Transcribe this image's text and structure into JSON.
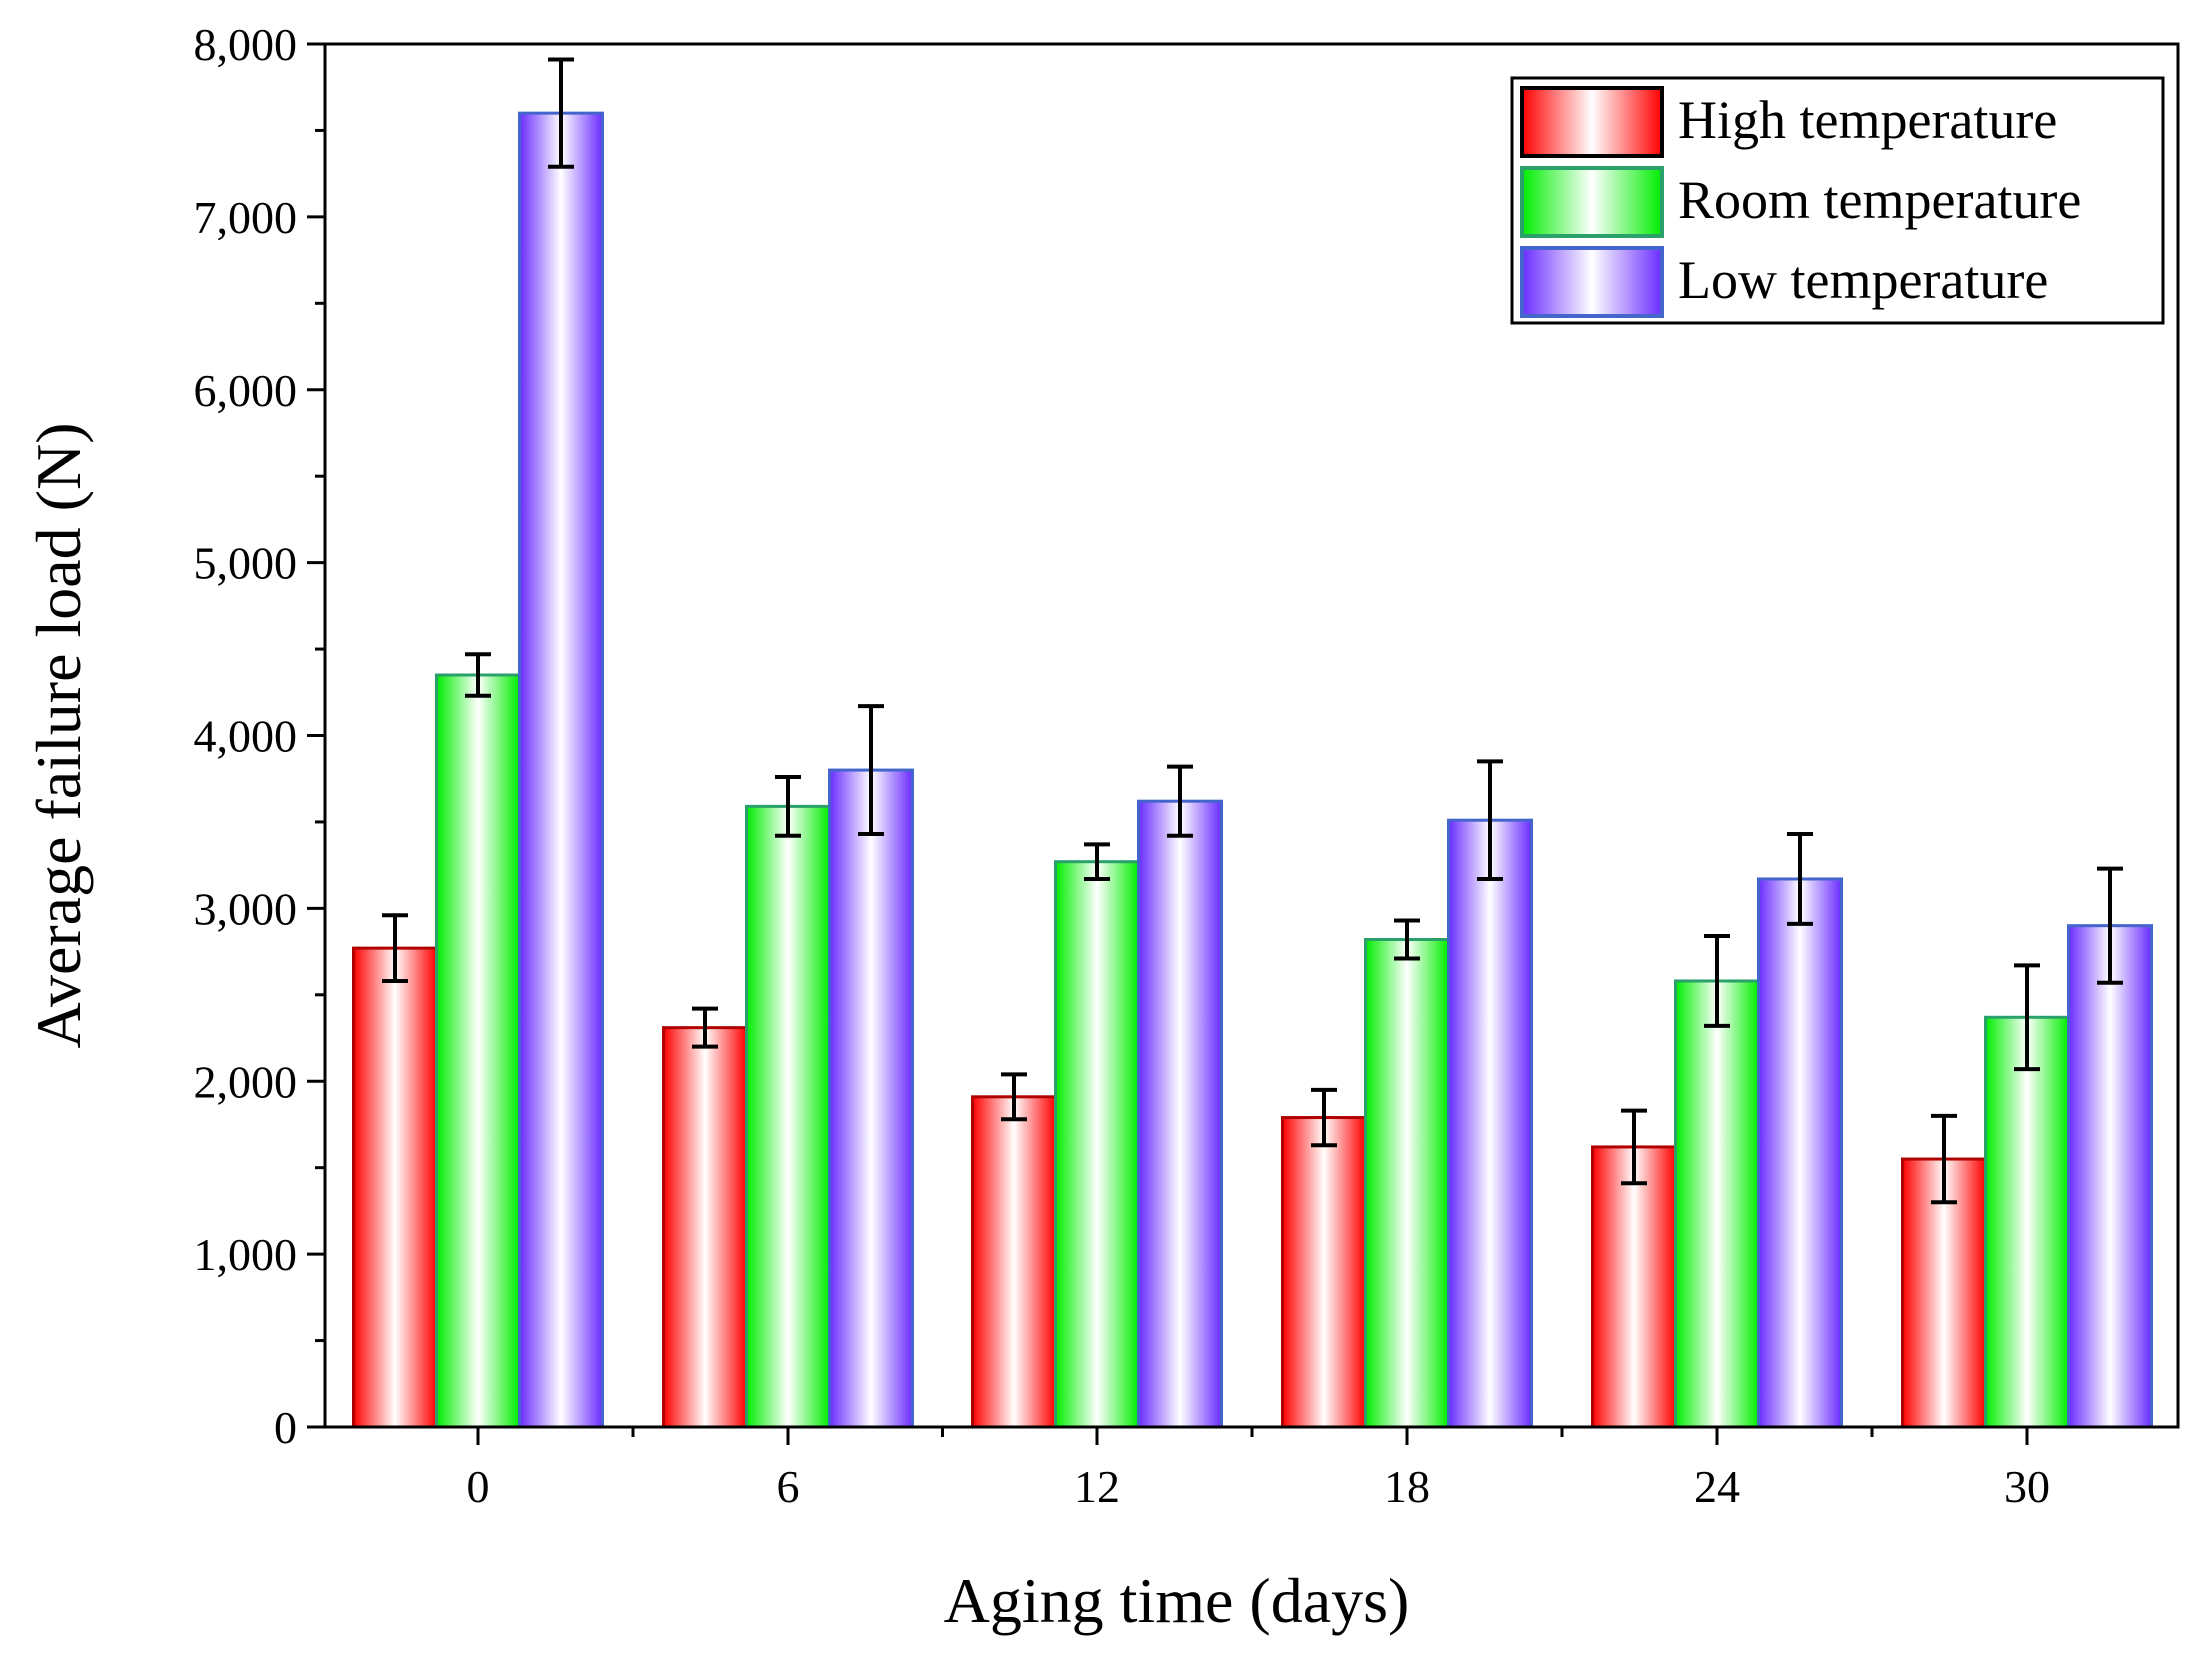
{
  "chart_data": {
    "type": "bar",
    "title": "",
    "xlabel": "Aging time (days)",
    "ylabel": "Average failure load (N)",
    "categories": [
      "0",
      "6",
      "12",
      "18",
      "24",
      "30"
    ],
    "ylim": [
      0,
      8000
    ],
    "yticks": [
      0,
      1000,
      2000,
      3000,
      4000,
      5000,
      6000,
      7000,
      8000
    ],
    "ytick_labels": [
      "0",
      "1,000",
      "2,000",
      "3,000",
      "4,000",
      "5,000",
      "6,000",
      "7,000",
      "8,000"
    ],
    "grid": false,
    "legend_position": "top-right",
    "series": [
      {
        "name": "High temperature",
        "color": "#ff0000",
        "values": [
          2770,
          2310,
          1910,
          1790,
          1620,
          1550
        ],
        "errors": [
          190,
          110,
          130,
          160,
          210,
          250
        ]
      },
      {
        "name": "Room temperature",
        "color": "#00ee00",
        "values": [
          4350,
          3590,
          3270,
          2820,
          2580,
          2370
        ],
        "errors": [
          120,
          170,
          100,
          110,
          260,
          300
        ]
      },
      {
        "name": "Low temperature",
        "color": "#6a2cff",
        "values": [
          7600,
          3800,
          3620,
          3510,
          3170,
          2900
        ],
        "errors": [
          310,
          370,
          200,
          340,
          260,
          330
        ]
      }
    ]
  }
}
